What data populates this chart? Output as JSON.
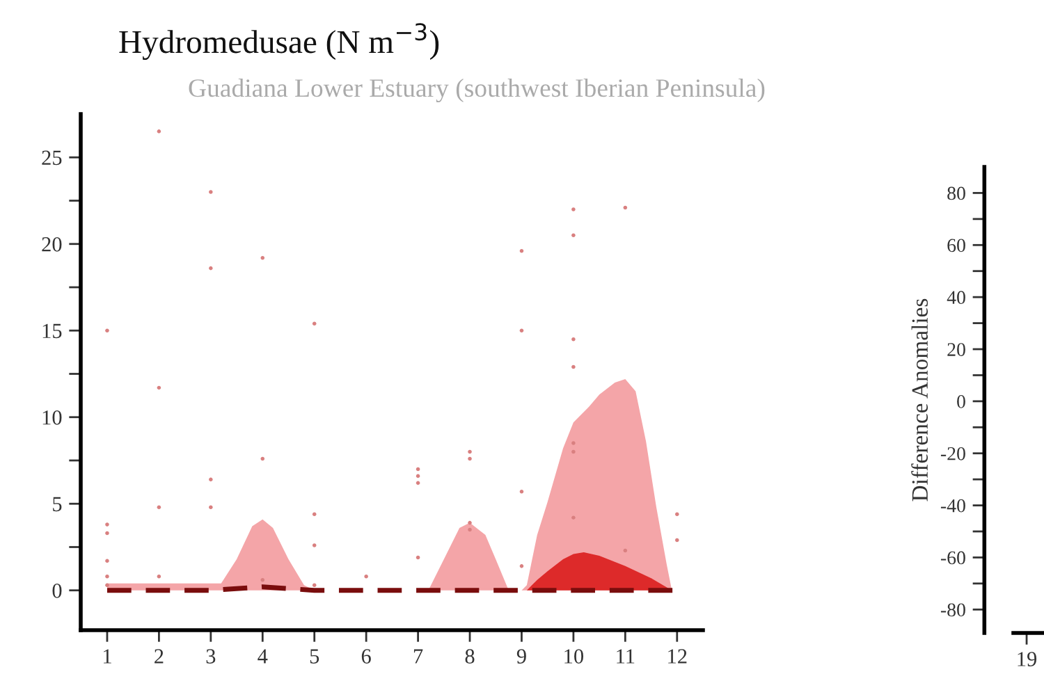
{
  "chart_data": [
    {
      "type": "area",
      "title": "Hydromedusae (N m$^{−3}$)",
      "subtitle": "Guadiana Lower Estuary (southwest Iberian Peninsula)",
      "xlim": [
        0.49,
        12.5
      ],
      "xticks": [
        1,
        2,
        3,
        4,
        5,
        6,
        7,
        8,
        9,
        10,
        11,
        12
      ],
      "ylim": [
        -2.3,
        27.5
      ],
      "yticks": [
        0,
        {
          "value": 2.5,
          "label": null
        },
        5,
        {
          "value": 7.5,
          "label": null
        },
        10,
        {
          "value": 12.5,
          "label": null
        },
        15,
        {
          "value": 17.5,
          "label": null
        },
        20,
        {
          "value": 22.5,
          "label": null
        },
        25
      ],
      "grid": false,
      "legend": false,
      "series": [
        {
          "color": "#f4a5a8",
          "x": [
            1,
            2,
            3,
            3.2,
            3.5,
            3.8,
            4,
            4.2,
            4.5,
            4.8,
            5,
            6,
            7,
            7.2,
            7.5,
            7.8,
            8,
            8.3,
            8.5,
            8.75,
            9,
            9.1,
            9.3,
            9.5,
            9.8,
            10,
            10.3,
            10.5,
            10.8,
            11,
            11.2,
            11.4,
            11.6,
            11.8,
            11.9
          ],
          "values": [
            0.4,
            0.4,
            0.4,
            0.4,
            1.8,
            3.7,
            4.1,
            3.6,
            1.8,
            0.3,
            0,
            0,
            0,
            0,
            1.8,
            3.6,
            3.9,
            3.2,
            1.8,
            0,
            0,
            0.3,
            3.2,
            5.1,
            8.2,
            9.7,
            10.6,
            11.3,
            12,
            12.2,
            11.5,
            8.6,
            4.8,
            1.5,
            0
          ]
        },
        {
          "color": "#dd2a2a",
          "x": [
            9.1,
            9.3,
            9.5,
            9.8,
            10,
            10.2,
            10.5,
            11,
            11.5,
            11.9
          ],
          "values": [
            0,
            0.6,
            1.1,
            1.8,
            2.1,
            2.2,
            2,
            1.4,
            0.7,
            0
          ]
        },
        {
          "type": "line",
          "color": "#7a0d0d",
          "line_style": "dashed",
          "marker": "none",
          "x": [
            1,
            2,
            3,
            4,
            5,
            6,
            7,
            8,
            9,
            10,
            11,
            12
          ],
          "values": [
            0,
            0,
            0,
            0.2,
            0,
            0,
            0,
            0,
            0,
            0,
            0,
            0
          ]
        },
        {
          "type": "scatter",
          "color": "#d98080",
          "marker": "circle",
          "x": [
            1,
            1,
            1,
            1,
            1,
            1,
            2,
            2,
            2,
            2,
            3,
            3,
            3,
            3,
            4,
            4,
            4,
            5,
            5,
            5,
            5,
            6,
            7,
            7,
            7,
            7,
            8,
            8,
            8,
            8,
            9,
            9,
            9,
            9,
            10,
            10,
            10,
            10,
            10,
            10,
            10,
            11,
            11,
            12,
            12
          ],
          "values": [
            15,
            3.8,
            3.3,
            1.7,
            0.8,
            0.3,
            26.5,
            11.7,
            4.8,
            0.8,
            23,
            18.6,
            6.4,
            4.8,
            19.2,
            7.6,
            0.6,
            15.4,
            4.4,
            2.6,
            0.3,
            0.8,
            7,
            6.6,
            6.2,
            1.9,
            8,
            7.6,
            3.9,
            3.5,
            19.6,
            15,
            5.7,
            1.4,
            22,
            20.5,
            14.5,
            12.9,
            8.5,
            8,
            4.2,
            22.1,
            2.3,
            4.4,
            2.9
          ]
        }
      ]
    },
    {
      "type": "line",
      "ylabel": "Difference Anomalies",
      "categories": [
        "19"
      ],
      "values": [
        null
      ],
      "ylim": [
        -89,
        90
      ],
      "yticks": [
        -80,
        {
          "value": -70,
          "label": null
        },
        -60,
        {
          "value": -50,
          "label": null
        },
        -40,
        {
          "value": -30,
          "label": null
        },
        -20,
        {
          "value": -10,
          "label": null
        },
        0,
        {
          "value": 10,
          "label": null
        },
        20,
        {
          "value": 30,
          "label": null
        },
        40,
        {
          "value": 50,
          "label": null
        },
        60,
        {
          "value": 70,
          "label": null
        },
        80
      ]
    }
  ]
}
